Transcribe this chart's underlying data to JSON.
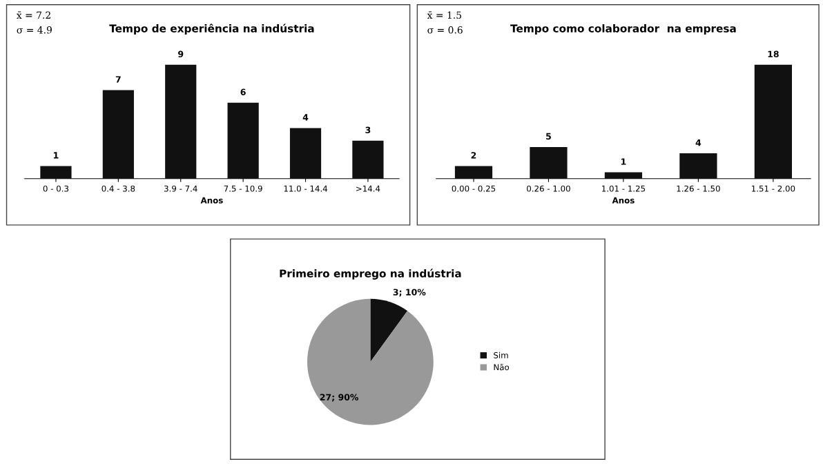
{
  "chart_data": [
    {
      "type": "bar",
      "title": "Tempo de experiência na indústria",
      "xlabel": "Anos",
      "categories": [
        "0 - 0.3",
        "0.4 - 3.8",
        "3.9 - 7.4",
        "7.5 - 10.9",
        "11.0 - 14.4",
        ">14.4"
      ],
      "values": [
        1,
        7,
        9,
        6,
        4,
        3
      ],
      "color": "#111111",
      "data_labels": true,
      "tick_labels": "x",
      "grid": false,
      "annotations": [
        "x̄ = 7.2",
        "σ = 4.9"
      ]
    },
    {
      "type": "bar",
      "title": "Tempo como colaborador  na empresa",
      "xlabel": "Anos",
      "categories": [
        "0.00 - 0.25",
        "0.26 - 1.00",
        "1.01 - 1.25",
        "1.26 - 1.50",
        "1.51 - 2.00"
      ],
      "values": [
        2,
        5,
        1,
        4,
        18
      ],
      "color": "#111111",
      "data_labels": true,
      "tick_labels": "x",
      "grid": false,
      "annotations": [
        "x̄ = 1.5",
        "σ = 0.6"
      ]
    },
    {
      "type": "pie",
      "title": "Primeiro emprego na indústria",
      "categories": [
        "Sim",
        "Não"
      ],
      "values": [
        3,
        27
      ],
      "colors": [
        "#111111",
        "#999999"
      ],
      "value_labels": [
        "3; 10%",
        "27; 90%"
      ],
      "legend": "right"
    }
  ]
}
